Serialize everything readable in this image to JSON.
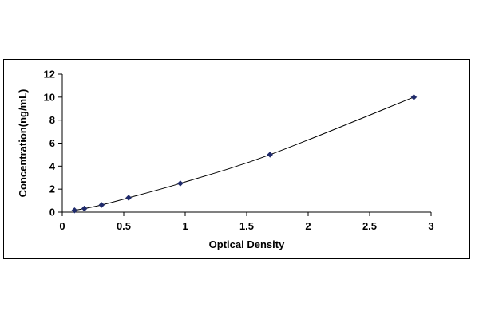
{
  "chart_data": {
    "type": "scatter",
    "title": "",
    "xlabel": "Optical Density",
    "ylabel": "Concentration(ng/mL)",
    "xlim": [
      0,
      3
    ],
    "ylim": [
      0,
      12
    ],
    "x_ticks": [
      0,
      0.5,
      1,
      1.5,
      2,
      2.5,
      3
    ],
    "x_tick_labels": [
      "0",
      "0.5",
      "1",
      "1.5",
      "2",
      "2.5",
      "3"
    ],
    "y_ticks": [
      0,
      2,
      4,
      6,
      8,
      10,
      12
    ],
    "y_tick_labels": [
      "0",
      "2",
      "4",
      "6",
      "8",
      "10",
      "12"
    ],
    "grid": false,
    "legend": "none",
    "marker": "diamond",
    "connected_by": "smooth-line",
    "series": [
      {
        "x": [
          0.1,
          0.18,
          0.32,
          0.54,
          0.96,
          1.69,
          2.86
        ],
        "y": [
          0.156,
          0.312,
          0.625,
          1.25,
          2.5,
          5,
          10
        ]
      }
    ],
    "colors": {
      "line": "#000000",
      "marker": "#1f2a6b",
      "axis": "#000000"
    }
  }
}
